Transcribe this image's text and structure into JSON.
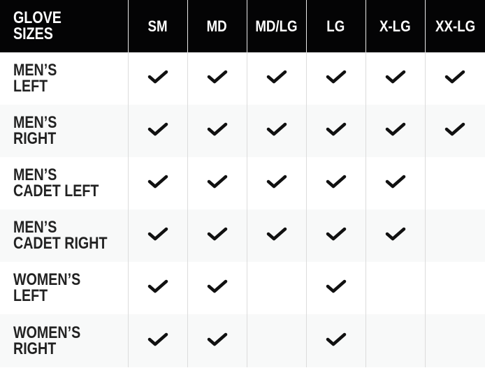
{
  "table": {
    "corner_label": "GLOVE\nSIZES",
    "sizes": [
      "SM",
      "MD",
      "MD/LG",
      "LG",
      "X-LG",
      "XX-LG"
    ],
    "rows": [
      {
        "label": "MEN’S\nLEFT",
        "available": [
          true,
          true,
          true,
          true,
          true,
          true
        ]
      },
      {
        "label": "MEN’S\nRIGHT",
        "available": [
          true,
          true,
          true,
          true,
          true,
          true
        ]
      },
      {
        "label": "MEN’S\nCADET LEFT",
        "available": [
          true,
          true,
          true,
          true,
          true,
          false
        ]
      },
      {
        "label": "MEN’S\nCADET RIGHT",
        "available": [
          true,
          true,
          true,
          true,
          true,
          false
        ]
      },
      {
        "label": "WOMEN’S\nLEFT",
        "available": [
          true,
          true,
          false,
          true,
          false,
          false
        ]
      },
      {
        "label": "WOMEN’S\nRIGHT",
        "available": [
          true,
          true,
          false,
          true,
          false,
          false
        ]
      }
    ],
    "check_icon": "checkmark-icon",
    "colors": {
      "header_bg": "#040405",
      "text": "#222222",
      "alt_row": "#f8f9f9"
    }
  }
}
